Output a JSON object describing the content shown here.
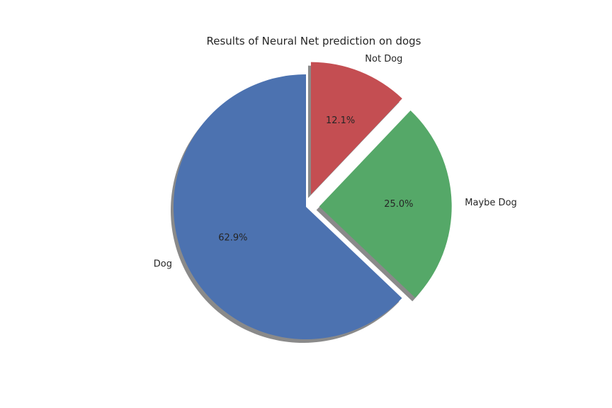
{
  "chart_data": {
    "type": "pie",
    "title": "Results of Neural Net prediction on dogs",
    "categories": [
      "Dog",
      "Maybe Dog",
      "Not Dog"
    ],
    "values": [
      62.9,
      25.0,
      12.1
    ],
    "percent_labels": [
      "62.9%",
      "25.0%",
      "12.1%"
    ],
    "colors": [
      "#4c72b0",
      "#55a868",
      "#c44e52"
    ],
    "exploded": [
      false,
      true,
      true
    ],
    "shadow": true,
    "start_angle_deg": 90,
    "direction": "counterclockwise"
  }
}
